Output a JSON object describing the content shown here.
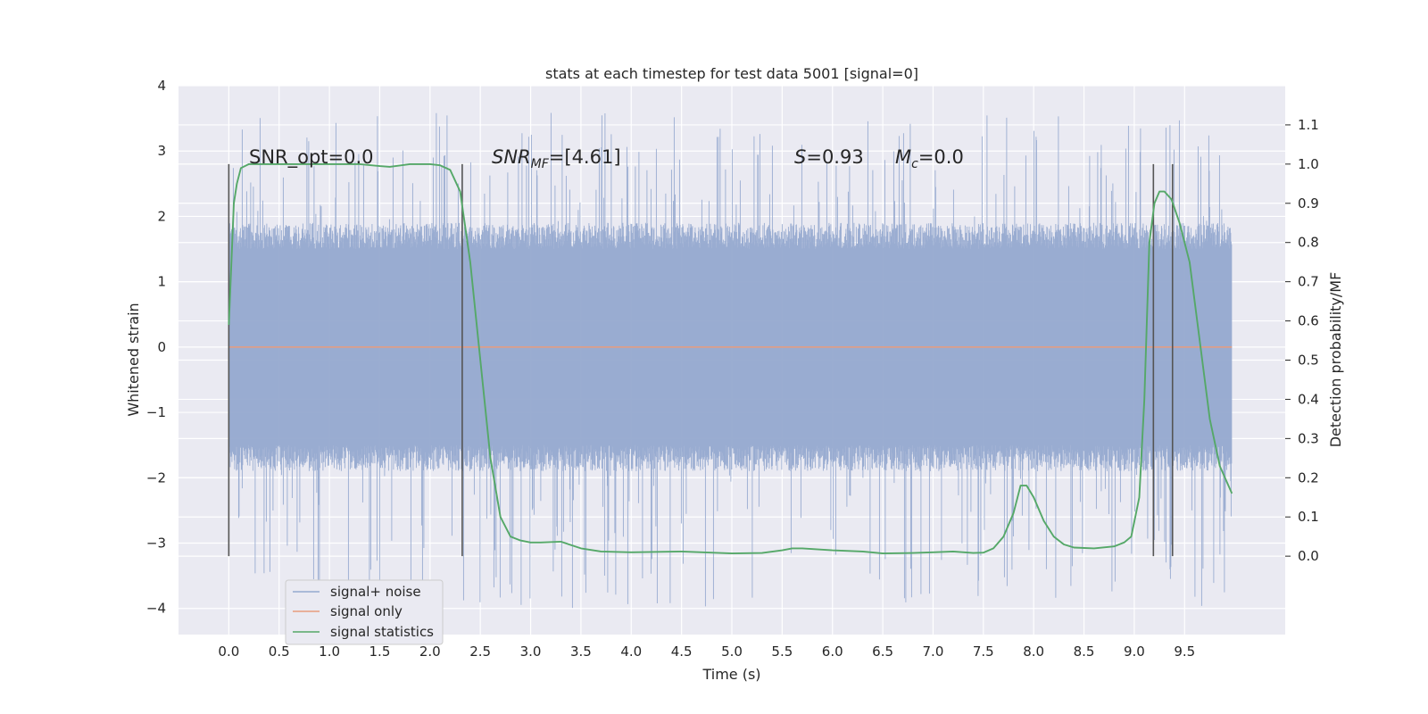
{
  "chart_data": {
    "type": "line",
    "title": "stats at each timestep for test data 5001 [signal=0]",
    "xlabel": "Time (s)",
    "ylabel": "Whitened strain",
    "y2label": "Detection probability/MF",
    "xlim": [
      -0.5,
      10.5
    ],
    "ylim": [
      -4.4,
      4.0
    ],
    "y2lim": [
      -0.2,
      1.2
    ],
    "x_ticks": [
      "0.0",
      "0.5",
      "1.0",
      "1.5",
      "2.0",
      "2.5",
      "3.0",
      "3.5",
      "4.0",
      "4.5",
      "5.0",
      "5.5",
      "6.0",
      "6.5",
      "7.0",
      "7.5",
      "8.0",
      "8.5",
      "9.0",
      "9.5"
    ],
    "y_ticks": [
      "−4",
      "−3",
      "−2",
      "−1",
      "0",
      "1",
      "2",
      "3",
      "4"
    ],
    "y2_ticks": [
      "0.0",
      "0.1",
      "0.2",
      "0.3",
      "0.4",
      "0.5",
      "0.6",
      "0.7",
      "0.8",
      "0.9",
      "1.0",
      "1.1"
    ],
    "grid": true,
    "legend_position": "lower-left",
    "annotations": {
      "snr_opt": "SNR_opt=0.0",
      "snr_mf_main": "SNR",
      "snr_mf_sub": "MF",
      "snr_mf_rest": "=[4.61]",
      "s_main": "S",
      "s_rest": "=0.93",
      "mc_main": "M",
      "mc_sub": "c",
      "mc_rest": "=0.0"
    },
    "vertical_markers": [
      0.0,
      2.32,
      9.19,
      9.38
    ],
    "series": [
      {
        "name": "signal+ noise",
        "color": "#95a9cf",
        "axis": "left",
        "x_range": [
          0.0,
          9.97
        ],
        "band_typical": [
          -1.5,
          1.5
        ],
        "band_extreme": [
          -4.0,
          3.6
        ]
      },
      {
        "name": "signal only",
        "color": "#e89c7d",
        "axis": "left",
        "x": [
          0.0,
          9.97
        ],
        "y": [
          0.0,
          0.0
        ]
      },
      {
        "name": "signal statistics",
        "color": "#55a868",
        "axis": "right",
        "x": [
          0.0,
          0.05,
          0.08,
          0.12,
          0.2,
          0.5,
          1.0,
          1.3,
          1.5,
          1.6,
          1.8,
          2.0,
          2.1,
          2.2,
          2.3,
          2.4,
          2.5,
          2.6,
          2.7,
          2.8,
          2.9,
          3.0,
          3.1,
          3.3,
          3.5,
          3.7,
          4.0,
          4.5,
          5.0,
          5.3,
          5.5,
          5.6,
          5.7,
          6.0,
          6.3,
          6.5,
          6.8,
          7.0,
          7.2,
          7.4,
          7.5,
          7.6,
          7.7,
          7.8,
          7.87,
          7.93,
          8.0,
          8.1,
          8.2,
          8.3,
          8.4,
          8.6,
          8.8,
          8.9,
          8.97,
          9.05,
          9.1,
          9.15,
          9.2,
          9.25,
          9.3,
          9.37,
          9.45,
          9.55,
          9.65,
          9.75,
          9.85,
          9.97
        ],
        "y": [
          0.59,
          0.9,
          0.95,
          0.99,
          1.0,
          1.0,
          1.0,
          1.0,
          0.995,
          0.993,
          1.0,
          1.0,
          0.997,
          0.985,
          0.93,
          0.75,
          0.5,
          0.25,
          0.1,
          0.05,
          0.04,
          0.035,
          0.035,
          0.037,
          0.02,
          0.012,
          0.01,
          0.012,
          0.007,
          0.008,
          0.015,
          0.02,
          0.02,
          0.015,
          0.012,
          0.007,
          0.008,
          0.01,
          0.012,
          0.008,
          0.009,
          0.02,
          0.05,
          0.11,
          0.18,
          0.18,
          0.15,
          0.09,
          0.05,
          0.03,
          0.022,
          0.02,
          0.025,
          0.035,
          0.05,
          0.15,
          0.4,
          0.8,
          0.9,
          0.93,
          0.93,
          0.91,
          0.85,
          0.75,
          0.55,
          0.35,
          0.23,
          0.16
        ]
      }
    ]
  }
}
